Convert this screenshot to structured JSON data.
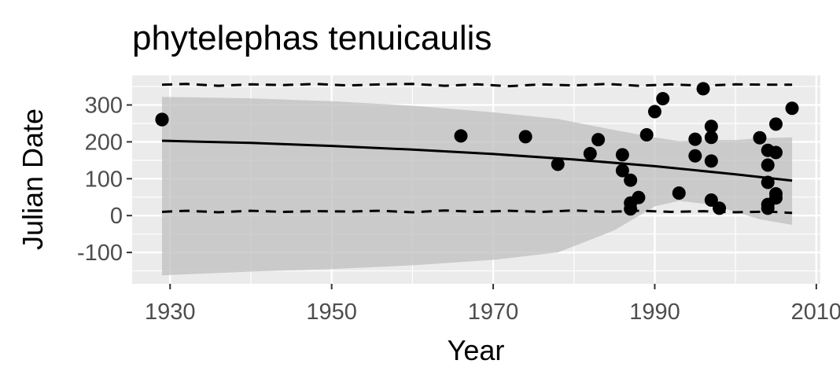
{
  "chart_data": {
    "type": "scatter",
    "title": "phytelephas tenuicaulis",
    "xlabel": "Year",
    "ylabel": "Julian Date",
    "xlim": [
      1925.3,
      2010.5
    ],
    "ylim": [
      -185,
      380
    ],
    "x_ticks": [
      1930,
      1950,
      1970,
      1990,
      2010
    ],
    "x_tick_labels": [
      "1930",
      "1950",
      "1970",
      "1990",
      "2010"
    ],
    "y_ticks": [
      -100,
      0,
      100,
      200,
      300
    ],
    "y_tick_labels": [
      "-100",
      "0",
      "100",
      "200",
      "300"
    ],
    "grid": true,
    "colors": {
      "panel": "#ebebeb",
      "grid": "#ffffff",
      "ribbon": "#bdbdbd",
      "points": "#000000",
      "line": "#000000"
    },
    "points": [
      {
        "x": 1929,
        "y": 261
      },
      {
        "x": 1929,
        "y": 260
      },
      {
        "x": 1966,
        "y": 216
      },
      {
        "x": 1974,
        "y": 214
      },
      {
        "x": 1978,
        "y": 139
      },
      {
        "x": 1982,
        "y": 168
      },
      {
        "x": 1983,
        "y": 206
      },
      {
        "x": 1986,
        "y": 165
      },
      {
        "x": 1986,
        "y": 122
      },
      {
        "x": 1987,
        "y": 96
      },
      {
        "x": 1987,
        "y": 34
      },
      {
        "x": 1987,
        "y": 18
      },
      {
        "x": 1988,
        "y": 49
      },
      {
        "x": 1989,
        "y": 219
      },
      {
        "x": 1990,
        "y": 282
      },
      {
        "x": 1991,
        "y": 317
      },
      {
        "x": 1993,
        "y": 61
      },
      {
        "x": 1995,
        "y": 207
      },
      {
        "x": 1995,
        "y": 162
      },
      {
        "x": 1996,
        "y": 344
      },
      {
        "x": 1997,
        "y": 242
      },
      {
        "x": 1997,
        "y": 212
      },
      {
        "x": 1997,
        "y": 148
      },
      {
        "x": 1997,
        "y": 42
      },
      {
        "x": 1998,
        "y": 20
      },
      {
        "x": 2003,
        "y": 211
      },
      {
        "x": 2004,
        "y": 177
      },
      {
        "x": 2004,
        "y": 137
      },
      {
        "x": 2004,
        "y": 90
      },
      {
        "x": 2004,
        "y": 30
      },
      {
        "x": 2004,
        "y": 20
      },
      {
        "x": 2005,
        "y": 248
      },
      {
        "x": 2005,
        "y": 171
      },
      {
        "x": 2005,
        "y": 59
      },
      {
        "x": 2005,
        "y": 48
      },
      {
        "x": 2007,
        "y": 291
      }
    ],
    "trend_line": {
      "x": [
        1929,
        1940,
        1950,
        1960,
        1970,
        1980,
        1990,
        2000,
        2007
      ],
      "y": [
        203,
        197,
        189,
        179,
        167,
        152,
        134,
        112,
        95
      ]
    },
    "ribbon": {
      "x": [
        1929,
        1940,
        1950,
        1960,
        1970,
        1978,
        1985,
        1990,
        1993,
        1997,
        2000,
        2003,
        2007
      ],
      "upper": [
        322,
        318,
        310,
        298,
        280,
        262,
        232,
        212,
        202,
        205,
        205,
        210,
        212
      ],
      "lower": [
        -162,
        -152,
        -145,
        -135,
        -120,
        -100,
        -40,
        25,
        40,
        30,
        10,
        -10,
        -25
      ]
    },
    "upper_dashed": {
      "x": [
        1929,
        1932,
        1936,
        1940,
        1944,
        1948,
        1952,
        1956,
        1960,
        1964,
        1968,
        1972,
        1976,
        1980,
        1984,
        1988,
        1992,
        1996,
        2000,
        2004,
        2007
      ],
      "y": [
        355,
        357,
        352,
        356,
        354,
        357,
        353,
        356,
        357,
        352,
        356,
        351,
        356,
        353,
        357,
        352,
        356,
        352,
        356,
        355,
        355
      ]
    },
    "lower_dashed": {
      "x": [
        1929,
        1932,
        1936,
        1940,
        1944,
        1948,
        1952,
        1956,
        1960,
        1964,
        1968,
        1972,
        1976,
        1980,
        1984,
        1988,
        1992,
        1996,
        2000,
        2004,
        2007
      ],
      "y": [
        10,
        13,
        9,
        13,
        10,
        12,
        11,
        13,
        9,
        14,
        10,
        13,
        10,
        14,
        10,
        13,
        10,
        12,
        9,
        11,
        7
      ]
    }
  }
}
